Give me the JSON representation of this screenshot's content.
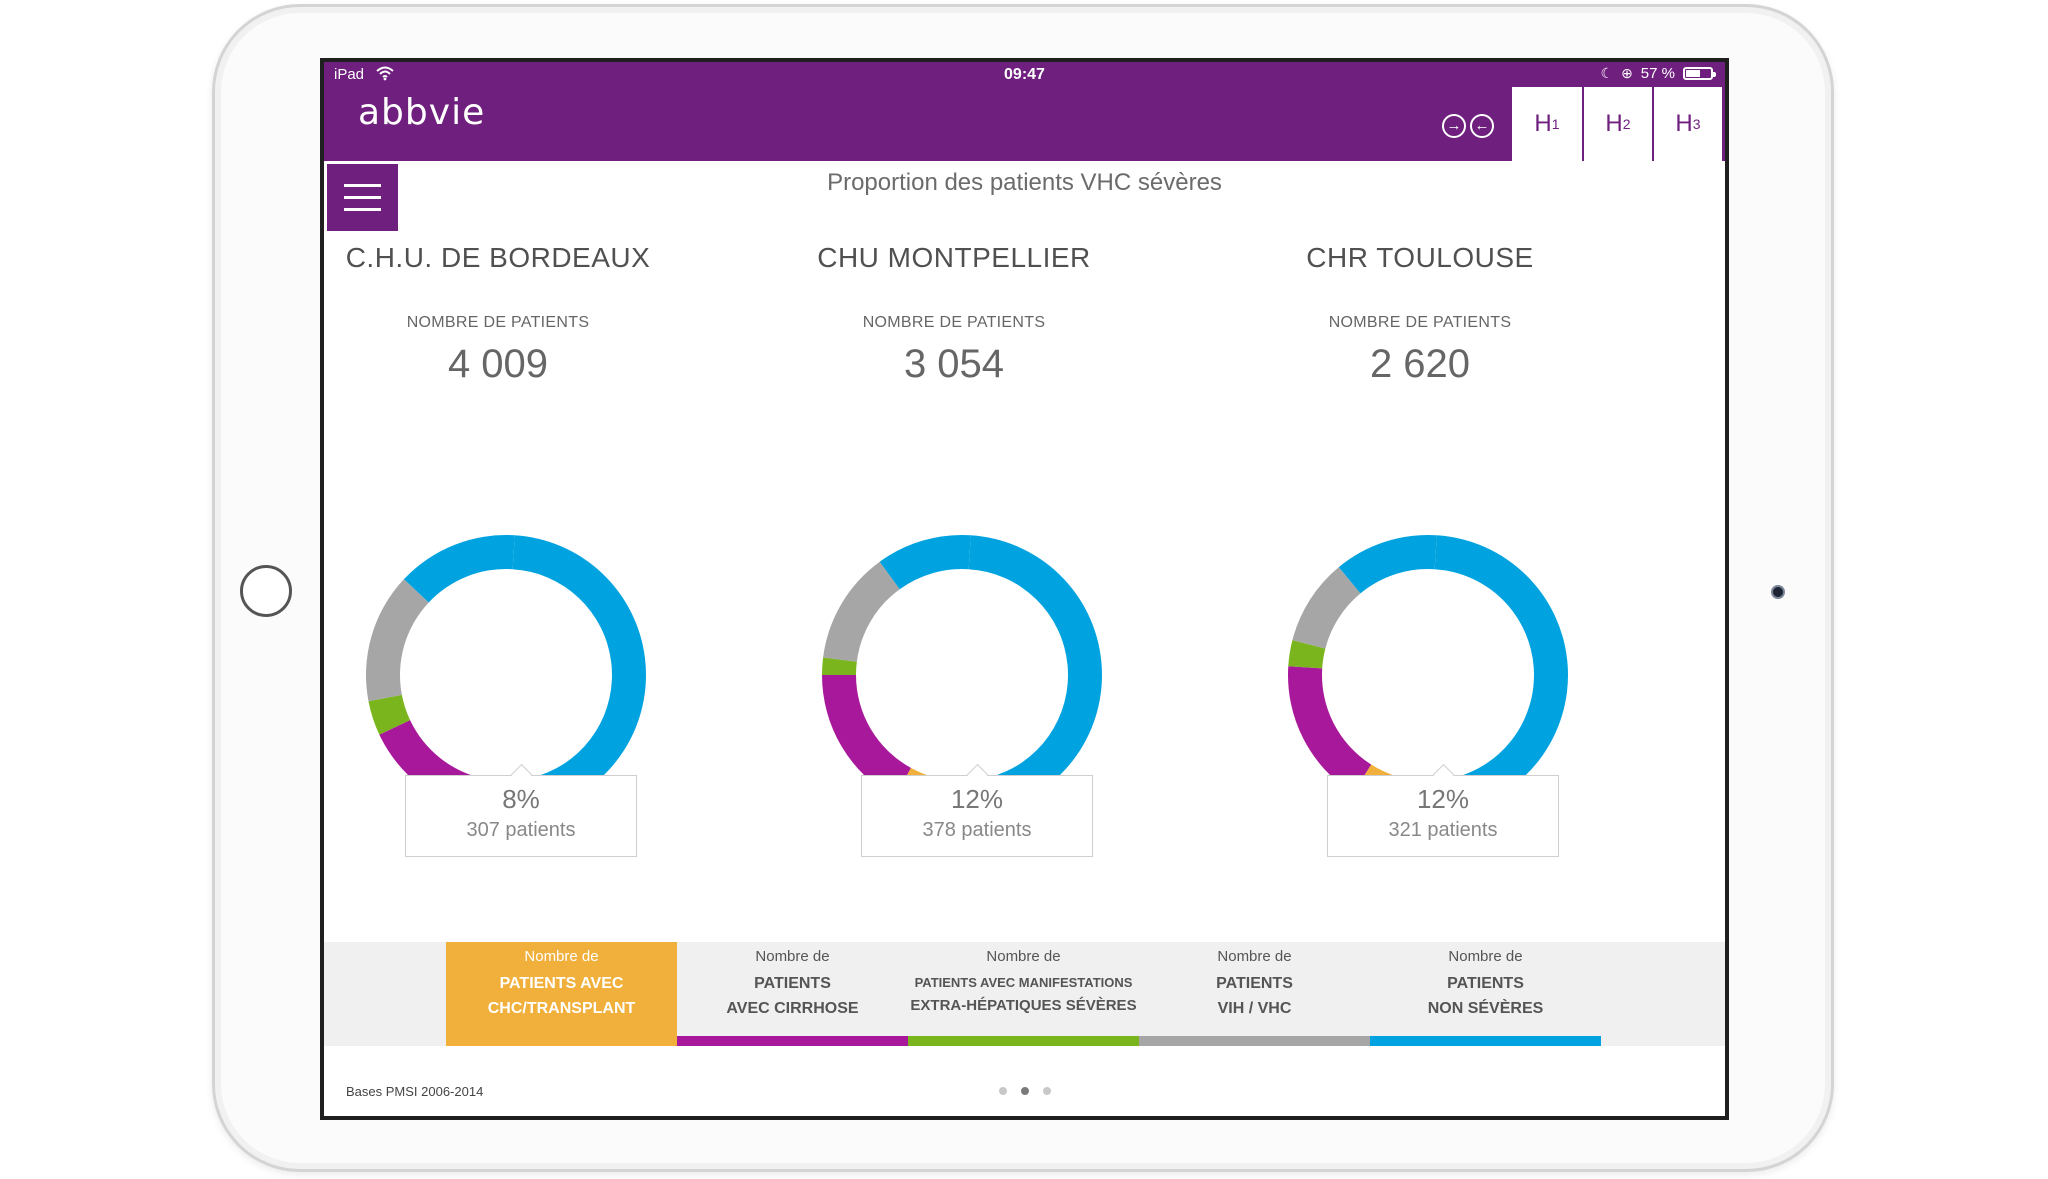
{
  "status_bar": {
    "device": "iPad",
    "time": "09:47",
    "battery": "57 %",
    "battery_level": 0.57,
    "icons": [
      "wifi-icon",
      "moon-icon",
      "rotation-lock-icon",
      "battery-icon"
    ]
  },
  "header": {
    "logo": "abbvie",
    "tabs": [
      {
        "main": "H",
        "sub": "1"
      },
      {
        "main": "H",
        "sub": "2"
      },
      {
        "main": "H",
        "sub": "3"
      }
    ],
    "nav_icons": [
      "arrow-right-circle-icon",
      "arrow-left-circle-icon"
    ]
  },
  "page_title": "Proportion des patients VHC sévères",
  "count_label": "NOMBRE DE PATIENTS",
  "hospitals": [
    {
      "name": "C.H.U. DE BORDEAUX",
      "count": "4 009",
      "callout_pct": "8%",
      "callout_patients": "307 patients",
      "segments": [
        0.44,
        0.08,
        0.15,
        0.04,
        0.15,
        0.14
      ]
    },
    {
      "name": "CHU MONTPELLIER",
      "count": "3 054",
      "callout_pct": "12%",
      "callout_patients": "378 patients",
      "segments": [
        0.45,
        0.12,
        0.17,
        0.02,
        0.13,
        0.11
      ]
    },
    {
      "name": "CHR TOULOUSE",
      "count": "2 620",
      "callout_pct": "12%",
      "callout_patients": "321 patients",
      "segments": [
        0.46,
        0.12,
        0.17,
        0.03,
        0.1,
        0.12
      ]
    }
  ],
  "segment_colors": [
    "#00a3e0",
    "#f0b03b",
    "#a8189b",
    "#7ab51d",
    "#a6a6a6",
    "#00a3e0"
  ],
  "legend": [
    {
      "l1": "Nombre de",
      "l2": "PATIENTS AVEC",
      "l3": "CHC/TRANSPLANT",
      "color": "#f0b03b",
      "active": true
    },
    {
      "l1": "Nombre de",
      "l2": "PATIENTS",
      "l3": "AVEC CIRRHOSE",
      "color": "#a8189b",
      "active": false
    },
    {
      "l1": "Nombre de",
      "l2": "PATIENTS AVEC MANIFESTATIONS",
      "l3": "EXTRA-HÉPATIQUES SÉVÈRES",
      "color": "#7ab51d",
      "active": false
    },
    {
      "l1": "Nombre de",
      "l2": "PATIENTS",
      "l3": "VIH / VHC",
      "color": "#a6a6a6",
      "active": false
    },
    {
      "l1": "Nombre de",
      "l2": "PATIENTS",
      "l3": "NON SÉVÈRES",
      "color": "#00a3e0",
      "active": false
    }
  ],
  "footer": {
    "source": "Bases PMSI 2006-2014",
    "pages": 3,
    "current_page": 2
  }
}
